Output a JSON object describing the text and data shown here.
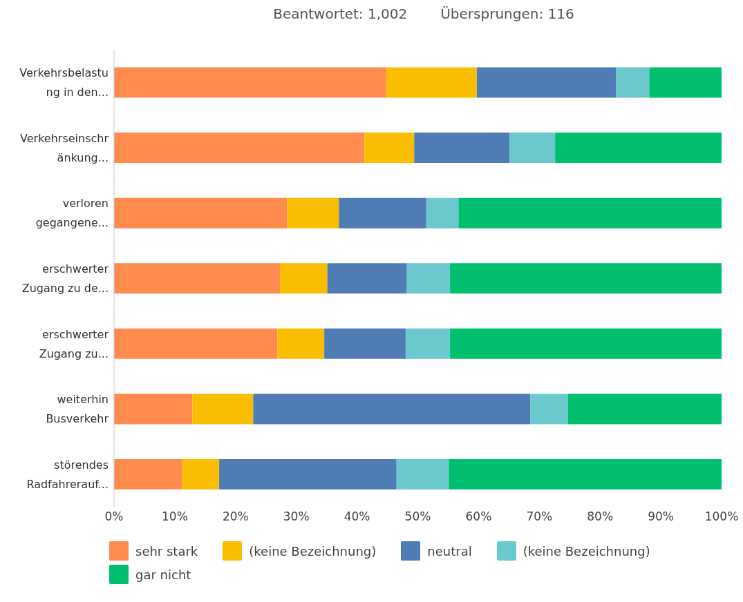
{
  "chart_data": {
    "type": "bar",
    "orientation": "horizontal",
    "stacked": true,
    "title": "Beantwortet: 1,002",
    "subtitle": "Übersprungen: 116",
    "categories": [
      "Verkehrsbelastu\nng in den...",
      "Verkehrseinschr\nänkung...",
      "verloren\ngegangene...",
      "erschwerter\nZugang zu de...",
      "erschwerter\nZugang zu...",
      "weiterhin\nBusverkehr",
      "störendes\nRadfahrerauf..."
    ],
    "series": [
      {
        "name": "sehr stark",
        "color": "#ff8b4f",
        "values": [
          44.8,
          41.2,
          28.5,
          27.3,
          26.9,
          12.9,
          11.2
        ]
      },
      {
        "name": "(keine Bezeichnung)",
        "color": "#f9be00",
        "values": [
          14.9,
          8.2,
          8.5,
          7.8,
          7.7,
          10.0,
          6.1
        ]
      },
      {
        "name": "neutral",
        "color": "#507cb6",
        "values": [
          22.9,
          15.7,
          14.4,
          13.1,
          13.4,
          45.6,
          29.2
        ]
      },
      {
        "name": "(keine Bezeichnung)",
        "color": "#6bc8cd",
        "values": [
          5.5,
          7.5,
          5.3,
          7.1,
          7.3,
          6.2,
          8.6
        ]
      },
      {
        "name": "gar nicht",
        "color": "#00bf6f",
        "values": [
          11.9,
          27.4,
          43.3,
          44.7,
          44.7,
          25.3,
          44.9
        ]
      }
    ],
    "xlim": [
      0,
      100
    ],
    "xticks": [
      {
        "value": 0,
        "label": "0%"
      },
      {
        "value": 10,
        "label": "10%"
      },
      {
        "value": 20,
        "label": "20%"
      },
      {
        "value": 30,
        "label": "30%"
      },
      {
        "value": 40,
        "label": "40%"
      },
      {
        "value": 50,
        "label": "50%"
      },
      {
        "value": 60,
        "label": "60%"
      },
      {
        "value": 70,
        "label": "70%"
      },
      {
        "value": 80,
        "label": "80%"
      },
      {
        "value": 90,
        "label": "90%"
      },
      {
        "value": 100,
        "label": "100%"
      }
    ],
    "legend": "bottom",
    "grid": false
  }
}
